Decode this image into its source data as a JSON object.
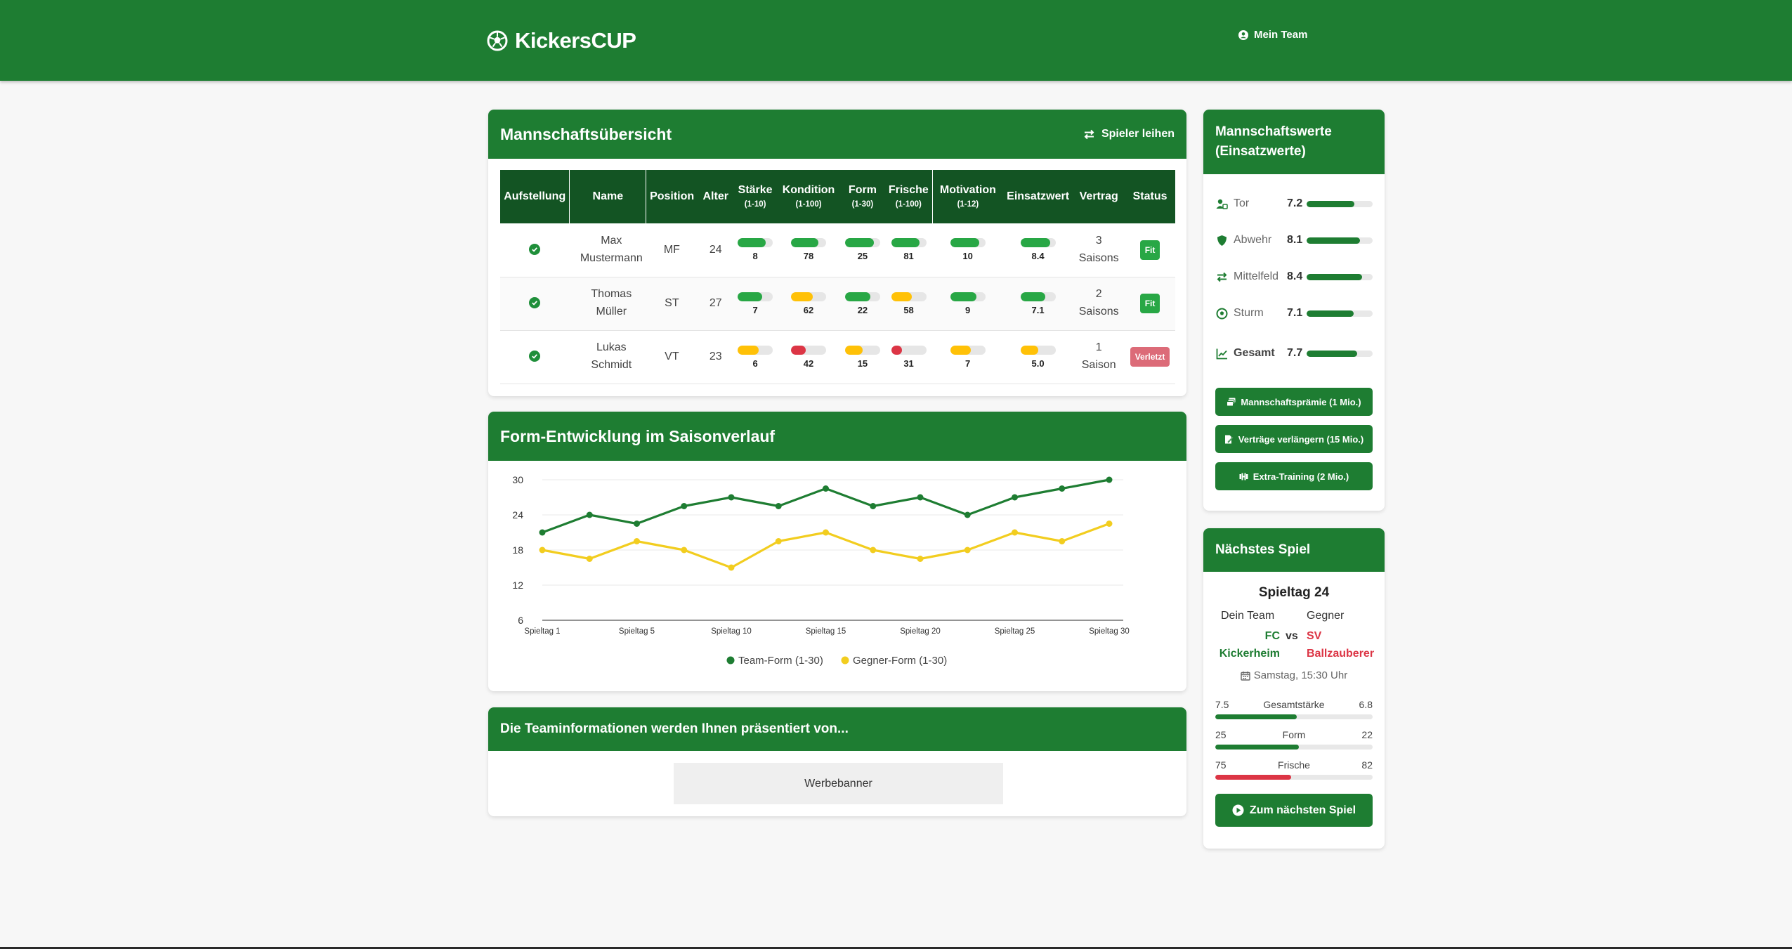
{
  "brand": {
    "name": "KickersCUP"
  },
  "nav": {
    "my_team": "Mein Team"
  },
  "squad": {
    "title": "Mannschaftsübersicht",
    "lend_button": "Spieler leihen",
    "columns": {
      "lineup": "Aufstellung",
      "name": "Name",
      "position": "Position",
      "age": "Alter",
      "strength": "Stärke",
      "strength_range": "(1-10)",
      "condition": "Kondition",
      "condition_range": "(1-100)",
      "form": "Form",
      "form_range": "(1-30)",
      "freshness": "Frische",
      "freshness_range": "(1-100)",
      "motivation": "Motivation",
      "motivation_range": "(1-12)",
      "value": "Einsatzwert",
      "contract": "Vertrag",
      "status": "Status"
    },
    "players": [
      {
        "first": "Max",
        "last": "Mustermann",
        "position": "MF",
        "age": "24",
        "strength": "8",
        "strength_level": 0.8,
        "strength_color": "#28a745",
        "condition": "78",
        "condition_level": 0.78,
        "condition_color": "#28a745",
        "form": "25",
        "form_level": 0.83,
        "form_color": "#28a745",
        "freshness": "81",
        "freshness_level": 0.81,
        "freshness_color": "#28a745",
        "motivation": "10",
        "motivation_level": 0.83,
        "motivation_color": "#28a745",
        "value": "8.4",
        "value_level": 0.84,
        "value_color": "#28a745",
        "contract_n": "3",
        "contract_unit": "Saisons",
        "status": "Fit"
      },
      {
        "first": "Thomas",
        "last": "Müller",
        "position": "ST",
        "age": "27",
        "strength": "7",
        "strength_level": 0.7,
        "strength_color": "#28a745",
        "condition": "62",
        "condition_level": 0.62,
        "condition_color": "#ffc107",
        "form": "22",
        "form_level": 0.73,
        "form_color": "#28a745",
        "freshness": "58",
        "freshness_level": 0.58,
        "freshness_color": "#ffc107",
        "motivation": "9",
        "motivation_level": 0.75,
        "motivation_color": "#28a745",
        "value": "7.1",
        "value_level": 0.71,
        "value_color": "#28a745",
        "contract_n": "2",
        "contract_unit": "Saisons",
        "status": "Fit"
      },
      {
        "first": "Lukas",
        "last": "Schmidt",
        "position": "VT",
        "age": "23",
        "strength": "6",
        "strength_level": 0.6,
        "strength_color": "#ffc107",
        "condition": "42",
        "condition_level": 0.42,
        "condition_color": "#dc3545",
        "form": "15",
        "form_level": 0.5,
        "form_color": "#ffc107",
        "freshness": "31",
        "freshness_level": 0.31,
        "freshness_color": "#dc3545",
        "motivation": "7",
        "motivation_level": 0.58,
        "motivation_color": "#ffc107",
        "value": "5.0",
        "value_level": 0.5,
        "value_color": "#ffc107",
        "contract_n": "1",
        "contract_unit": "Saison",
        "status": "Verletzt"
      }
    ]
  },
  "form_chart": {
    "title": "Form-Entwicklung im Saisonverlauf"
  },
  "chart_data": {
    "type": "line",
    "x": [
      "Spieltag 1",
      "Spieltag 3",
      "Spieltag 5",
      "Spieltag 7",
      "Spieltag 10",
      "Spieltag 12",
      "Spieltag 15",
      "Spieltag 17",
      "Spieltag 20",
      "Spieltag 22",
      "Spieltag 25",
      "Spieltag 27",
      "Spieltag 30"
    ],
    "xticks": [
      "Spieltag 1",
      "Spieltag 5",
      "Spieltag 10",
      "Spieltag 15",
      "Spieltag 20",
      "Spieltag 25",
      "Spieltag 30"
    ],
    "series": [
      {
        "name": "Team-Form (1-30)",
        "color": "#1e7d32",
        "values": [
          21,
          24,
          22.5,
          25.5,
          27,
          25.5,
          28.5,
          25.5,
          27,
          24,
          27,
          28.5,
          30
        ]
      },
      {
        "name": "Gegner-Form (1-30)",
        "color": "#f2cd1f",
        "values": [
          18,
          16.5,
          19.5,
          18,
          15,
          19.5,
          21,
          18,
          16.5,
          18,
          21,
          19.5,
          22.5
        ]
      }
    ],
    "ylim": [
      6,
      30
    ],
    "yticks": [
      "30",
      "24",
      "18",
      "12",
      "6"
    ],
    "grid": true,
    "legend": "bottom"
  },
  "ad": {
    "title": "Die Teaminformationen werden Ihnen präsentiert von...",
    "banner": "Werbebanner"
  },
  "team_values": {
    "title_line1": "Mannschaftswerte",
    "title_line2": "(Einsatzwerte)",
    "rows": [
      {
        "label": "Tor",
        "value": "7.2",
        "level": 0.72
      },
      {
        "label": "Abwehr",
        "value": "8.1",
        "level": 0.81
      },
      {
        "label": "Mittelfeld",
        "value": "8.4",
        "level": 0.84
      },
      {
        "label": "Sturm",
        "value": "7.1",
        "level": 0.71
      }
    ],
    "total": {
      "label": "Gesamt",
      "value": "7.7",
      "level": 0.77
    },
    "buttons": {
      "bonus": "Mannschaftsprämie (1 Mio.)",
      "extend": "Verträge verlängern (15 Mio.)",
      "training": "Extra-Training (2 Mio.)"
    }
  },
  "next_match": {
    "title": "Nächstes Spiel",
    "matchday": "Spieltag 24",
    "home_label": "Dein Team",
    "away_label": "Gegner",
    "home_line1": "FC",
    "home_line2": "Kickerheim",
    "vs": "vs",
    "away_line1": "SV",
    "away_line2": "Ballzauberer",
    "kickoff": "Samstag, 15:30 Uhr",
    "home_color": "#1e7d32",
    "away_color": "#dc3545",
    "comparisons": [
      {
        "label": "Gesamtstärke",
        "left": "7.5",
        "right": "6.8",
        "level": 0.52,
        "color": "#1e7d32"
      },
      {
        "label": "Form",
        "left": "25",
        "right": "22",
        "level": 0.53,
        "color": "#1e7d32"
      },
      {
        "label": "Frische",
        "left": "75",
        "right": "82",
        "level": 0.48,
        "color": "#dc3545"
      }
    ],
    "button": "Zum nächsten Spiel"
  }
}
